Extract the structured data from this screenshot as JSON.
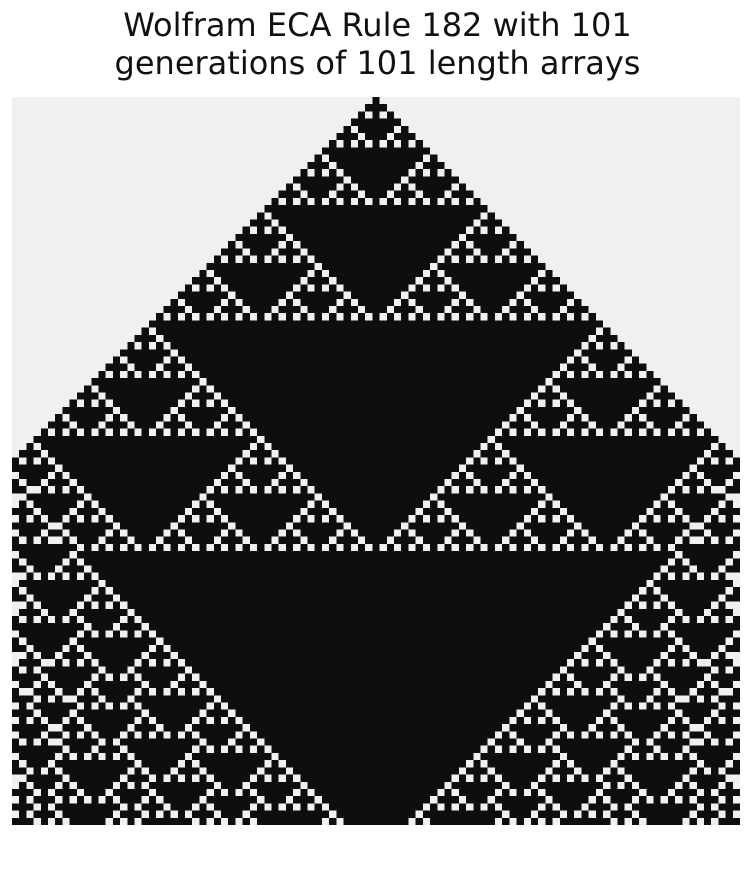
{
  "title": {
    "line1": "Wolfram ECA Rule 182 with 101",
    "line2": "generations of 101 length arrays"
  },
  "automaton": {
    "rule": 182,
    "generations": 101,
    "length": 101,
    "initial_state": "single live cell at center",
    "boundary": "fixed dead cells",
    "colors": {
      "live": "#0e0e0e",
      "dead": "#f0f0f0"
    }
  }
}
